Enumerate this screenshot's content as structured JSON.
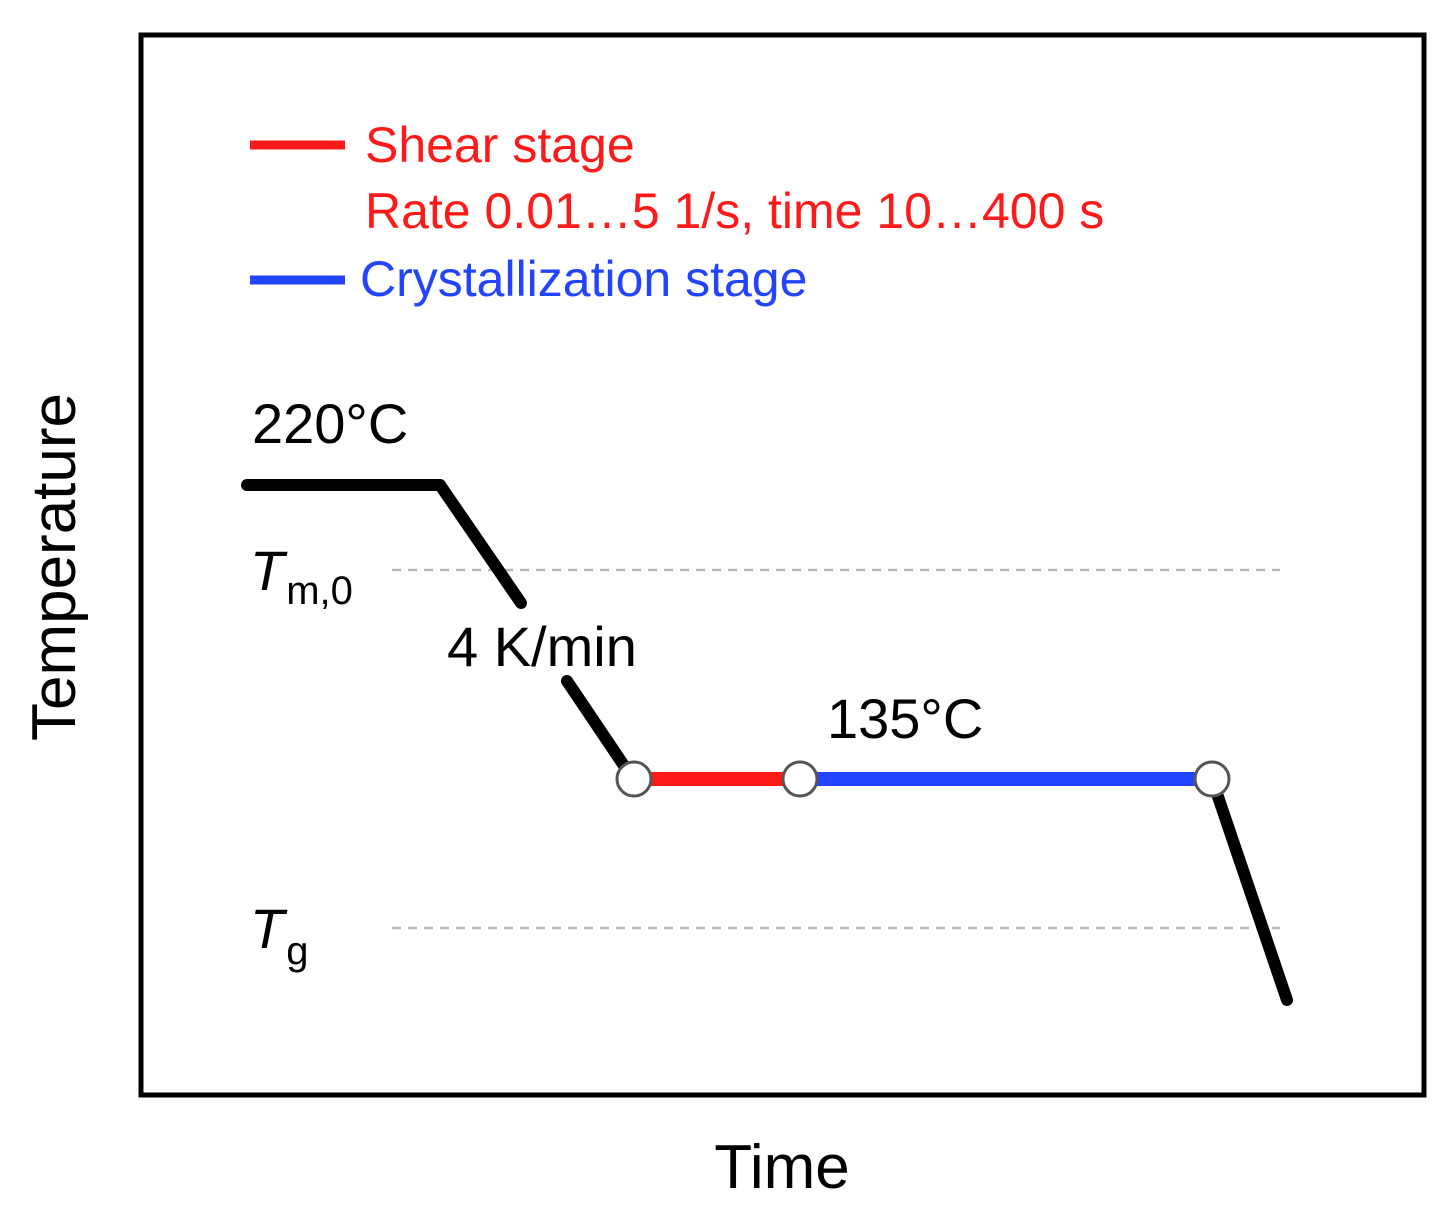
{
  "axes": {
    "x_label": "Time",
    "y_label": "Temperature"
  },
  "legend": {
    "shear_label": "Shear stage",
    "shear_detail": "Rate 0.01…5 1/s, time 10…400 s",
    "crystallization_label": "Crystallization stage"
  },
  "annotations": {
    "start_temp": "220°C",
    "cooling_rate": "4 K/min",
    "iso_temp": "135°C",
    "tm_symbol": "T",
    "tm_subscript": "m,0",
    "tg_symbol": "T",
    "tg_subscript": "g"
  },
  "colors": {
    "profile": "#000000",
    "shear": "#ff1a1a",
    "crystallization": "#2244ff",
    "reference_line": "#b8b8b8",
    "frame": "#000000"
  }
}
